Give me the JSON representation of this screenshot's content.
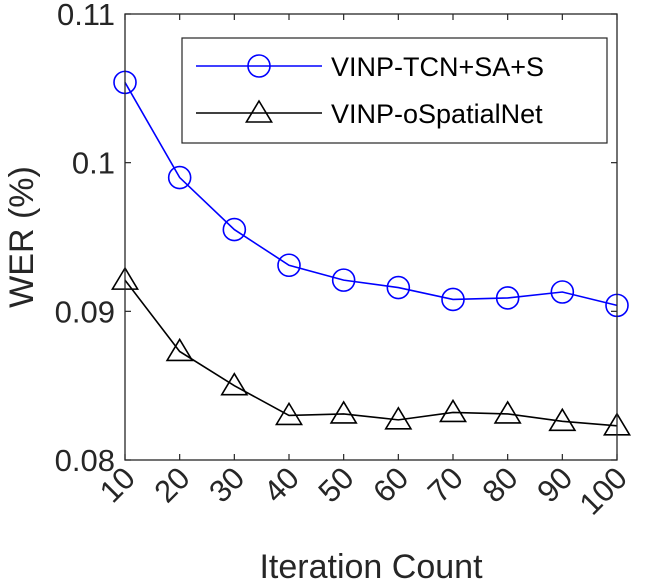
{
  "chart_data": {
    "type": "line",
    "title": "",
    "xlabel": "Iteration Count",
    "ylabel": "WER (%)",
    "x": [
      10,
      20,
      30,
      40,
      50,
      60,
      70,
      80,
      90,
      100
    ],
    "x_tick_labels": [
      "10",
      "20",
      "30",
      "40",
      "50",
      "60",
      "70",
      "80",
      "90",
      "100"
    ],
    "xlim": [
      10,
      100
    ],
    "ylim": [
      0.08,
      0.11
    ],
    "y_ticks": [
      0.08,
      0.09,
      0.1,
      0.11
    ],
    "y_tick_labels": [
      "0.08",
      "0.09",
      "0.1",
      "0.11"
    ],
    "grid": false,
    "legend_position": "top-right",
    "series": [
      {
        "name": "VINP-TCN+SA+S",
        "color": "#0000ff",
        "marker": "circle",
        "values": [
          0.1054,
          0.099,
          0.0955,
          0.0931,
          0.0921,
          0.0916,
          0.0908,
          0.0909,
          0.0913,
          0.0904
        ]
      },
      {
        "name": "VINP-oSpatialNet",
        "color": "#000000",
        "marker": "triangle",
        "values": [
          0.0921,
          0.0873,
          0.085,
          0.083,
          0.0831,
          0.0827,
          0.0832,
          0.0831,
          0.0826,
          0.0823
        ]
      }
    ]
  }
}
